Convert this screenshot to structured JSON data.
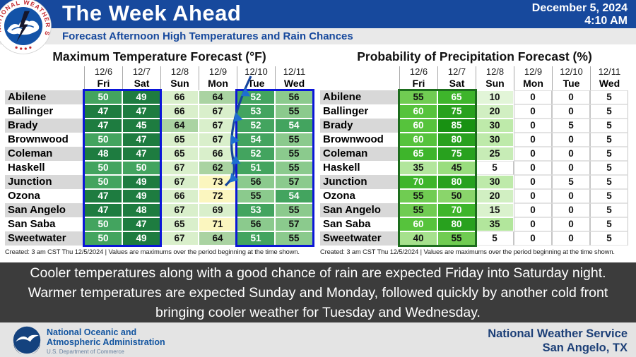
{
  "header": {
    "title": "The Week Ahead",
    "subtitle": "Forecast Afternoon High Temperatures and Rain Chances",
    "date": "December 5, 2024",
    "time": "4:10 AM"
  },
  "columns": {
    "dates": [
      "12/6",
      "12/7",
      "12/8",
      "12/9",
      "12/10",
      "12/11"
    ],
    "days": [
      "Fri",
      "Sat",
      "Sun",
      "Mon",
      "Tue",
      "Wed"
    ]
  },
  "chart_data": [
    {
      "type": "table",
      "title": "Maximum Temperature Forecast (°F)",
      "unit": "°F",
      "columns_dates": [
        "12/6",
        "12/7",
        "12/8",
        "12/9",
        "12/10",
        "12/11"
      ],
      "columns_days": [
        "Fri",
        "Sat",
        "Sun",
        "Mon",
        "Tue",
        "Wed"
      ],
      "rows": [
        {
          "city": "Abilene",
          "values": [
            50,
            49,
            66,
            64,
            52,
            56
          ]
        },
        {
          "city": "Ballinger",
          "values": [
            47,
            47,
            66,
            67,
            53,
            55
          ]
        },
        {
          "city": "Brady",
          "values": [
            47,
            45,
            64,
            67,
            52,
            54
          ]
        },
        {
          "city": "Brownwood",
          "values": [
            50,
            47,
            65,
            67,
            54,
            55
          ]
        },
        {
          "city": "Coleman",
          "values": [
            48,
            47,
            65,
            66,
            52,
            55
          ]
        },
        {
          "city": "Haskell",
          "values": [
            50,
            50,
            67,
            62,
            51,
            55
          ]
        },
        {
          "city": "Junction",
          "values": [
            50,
            49,
            67,
            73,
            56,
            57
          ]
        },
        {
          "city": "Ozona",
          "values": [
            47,
            49,
            66,
            72,
            55,
            54
          ]
        },
        {
          "city": "San Angelo",
          "values": [
            47,
            48,
            67,
            69,
            53,
            55
          ]
        },
        {
          "city": "San Saba",
          "values": [
            50,
            47,
            65,
            71,
            56,
            57
          ]
        },
        {
          "city": "Sweetwater",
          "values": [
            50,
            49,
            67,
            64,
            51,
            55
          ]
        }
      ],
      "footnote": "Created: 3 am CST Thu 12/5/2024  |  Values are maximums over the period beginning at the time shown.",
      "highlight_boxes": [
        {
          "columns": [
            "Fri",
            "Sat"
          ],
          "color": "#0b16d8"
        },
        {
          "columns": [
            "Tue",
            "Wed"
          ],
          "color": "#0b16d8"
        }
      ],
      "annotation": "cold-front-symbol over Tue column"
    },
    {
      "type": "table",
      "title": "Probability of Precipitation Forecast (%)",
      "unit": "%",
      "columns_dates": [
        "12/6",
        "12/7",
        "12/8",
        "12/9",
        "12/10",
        "12/11"
      ],
      "columns_days": [
        "Fri",
        "Sat",
        "Sun",
        "Mon",
        "Tue",
        "Wed"
      ],
      "rows": [
        {
          "city": "Abilene",
          "values": [
            55,
            65,
            10,
            0,
            0,
            5
          ]
        },
        {
          "city": "Ballinger",
          "values": [
            60,
            75,
            20,
            0,
            0,
            5
          ]
        },
        {
          "city": "Brady",
          "values": [
            60,
            85,
            30,
            0,
            5,
            5
          ]
        },
        {
          "city": "Brownwood",
          "values": [
            60,
            80,
            30,
            0,
            0,
            5
          ]
        },
        {
          "city": "Coleman",
          "values": [
            65,
            75,
            25,
            0,
            0,
            5
          ]
        },
        {
          "city": "Haskell",
          "values": [
            35,
            45,
            5,
            0,
            0,
            5
          ]
        },
        {
          "city": "Junction",
          "values": [
            70,
            80,
            30,
            0,
            5,
            5
          ]
        },
        {
          "city": "Ozona",
          "values": [
            55,
            50,
            20,
            0,
            0,
            5
          ]
        },
        {
          "city": "San Angelo",
          "values": [
            55,
            70,
            15,
            0,
            0,
            5
          ]
        },
        {
          "city": "San Saba",
          "values": [
            60,
            80,
            35,
            0,
            0,
            5
          ]
        },
        {
          "city": "Sweetwater",
          "values": [
            40,
            55,
            5,
            0,
            0,
            5
          ]
        }
      ],
      "footnote": "Created: 3 am CST Thu 12/5/2024  |  Values are maximums over the period beginning at the time shown.",
      "highlight_boxes": [
        {
          "columns": [
            "Fri",
            "Sat"
          ],
          "color": "#1d6d1d"
        }
      ]
    }
  ],
  "style": {
    "header_blue": "#17499d",
    "summary_bg": "#3c3c3c",
    "row_stripe": "#d8d8d8",
    "temp_scale": [
      {
        "max": 49,
        "bg": "#1e7c40",
        "fg": "#ffffff"
      },
      {
        "max": 54,
        "bg": "#43a45f",
        "fg": "#ffffff"
      },
      {
        "max": 57,
        "bg": "#8bca8d",
        "fg": "#121212"
      },
      {
        "max": 64,
        "bg": "#aad3a2",
        "fg": "#121212"
      },
      {
        "max": 70,
        "bg": "#d9efcb",
        "fg": "#121212"
      },
      {
        "max": 99,
        "bg": "#fbf6bf",
        "fg": "#121212"
      }
    ],
    "pop_scale": [
      {
        "max": 5,
        "bg": "#ffffff",
        "fg": "#121212"
      },
      {
        "max": 10,
        "bg": "#e2f5d8",
        "fg": "#121212"
      },
      {
        "max": 15,
        "bg": "#daf2cd",
        "fg": "#121212"
      },
      {
        "max": 20,
        "bg": "#d1efc2",
        "fg": "#121212"
      },
      {
        "max": 25,
        "bg": "#c7ecb6",
        "fg": "#121212"
      },
      {
        "max": 30,
        "bg": "#beeaaa",
        "fg": "#121212"
      },
      {
        "max": 35,
        "bg": "#b2e69c",
        "fg": "#121212"
      },
      {
        "max": 40,
        "bg": "#a6e18d",
        "fg": "#121212"
      },
      {
        "max": 45,
        "bg": "#99dd7e",
        "fg": "#121212"
      },
      {
        "max": 50,
        "bg": "#8ad56b",
        "fg": "#121212"
      },
      {
        "max": 55,
        "bg": "#70cc52",
        "fg": "#121212"
      },
      {
        "max": 60,
        "bg": "#56c33c",
        "fg": "#ffffff"
      },
      {
        "max": 70,
        "bg": "#3eb52b",
        "fg": "#ffffff"
      },
      {
        "max": 80,
        "bg": "#28a11e",
        "fg": "#ffffff"
      },
      {
        "max": 100,
        "bg": "#189112",
        "fg": "#ffffff"
      }
    ]
  },
  "summary": "Cooler temperatures along with a good chance of rain are expected Friday into Saturday night. Warmer temperatures are expected Sunday and Monday, followed quickly by another cold front bringing cooler weather for Tuesday and Wednesday.",
  "footer": {
    "noaa_name_line1": "National Oceanic and",
    "noaa_name_line2": "Atmospheric Administration",
    "noaa_dept": "U.S. Department of Commerce",
    "office_line1": "National Weather Service",
    "office_line2": "San Angelo, TX"
  }
}
